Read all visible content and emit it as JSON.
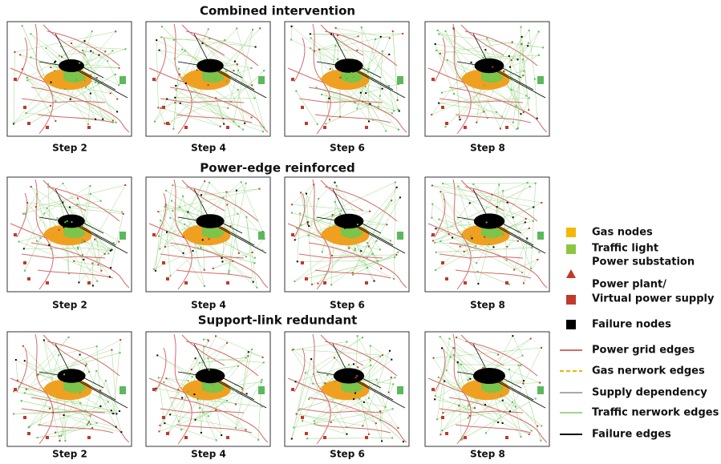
{
  "rows": [
    {
      "title": "Combined intervention",
      "steps": [
        "Step 2",
        "Step 4",
        "Step 6",
        "Step 8"
      ]
    },
    {
      "title": "Power-edge reinforced",
      "steps": [
        "Step 2",
        "Step 4",
        "Step 6",
        "Step 8"
      ]
    },
    {
      "title": "Support-link redundant",
      "steps": [
        "Step 2",
        "Step 4",
        "Step 6",
        "Step 8"
      ]
    }
  ],
  "legend": [
    "Gas nodes",
    "Traffic light",
    "Power substation",
    "Power plant/",
    "Virtual power supply",
    "Failure nodes",
    "Power grid edges",
    "Gas nerwork edges",
    "Supply dependency",
    "Traffic nerwork edges",
    "Failure edges"
  ]
}
